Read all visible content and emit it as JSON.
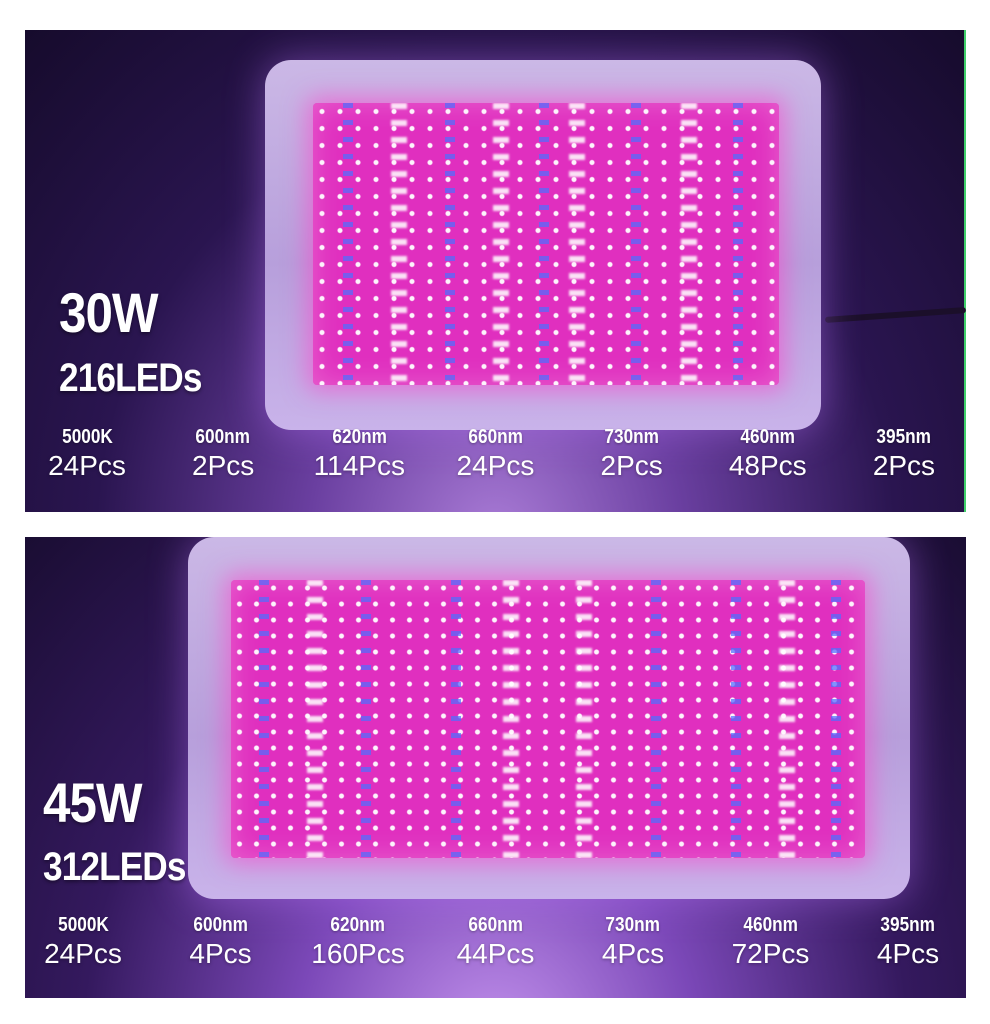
{
  "colors": {
    "led_pink": "#e02fbf",
    "housing": "#c3aee4",
    "text": "#ffffff",
    "divider_edge": "#3fcf6a"
  },
  "panels": [
    {
      "wattage": "30W",
      "led_count": "216LEDs",
      "specs": [
        {
          "label": "5000K",
          "count": "24Pcs"
        },
        {
          "label": "600nm",
          "count": "2Pcs"
        },
        {
          "label": "620nm",
          "count": "114Pcs"
        },
        {
          "label": "660nm",
          "count": "24Pcs"
        },
        {
          "label": "730nm",
          "count": "2Pcs"
        },
        {
          "label": "460nm",
          "count": "48Pcs"
        },
        {
          "label": "395nm",
          "count": "2Pcs"
        }
      ]
    },
    {
      "wattage": "45W",
      "led_count": "312LEDs",
      "specs": [
        {
          "label": "5000K",
          "count": "24Pcs"
        },
        {
          "label": "600nm",
          "count": "4Pcs"
        },
        {
          "label": "620nm",
          "count": "160Pcs"
        },
        {
          "label": "660nm",
          "count": "44Pcs"
        },
        {
          "label": "730nm",
          "count": "4Pcs"
        },
        {
          "label": "460nm",
          "count": "72Pcs"
        },
        {
          "label": "395nm",
          "count": "4Pcs"
        }
      ]
    }
  ]
}
